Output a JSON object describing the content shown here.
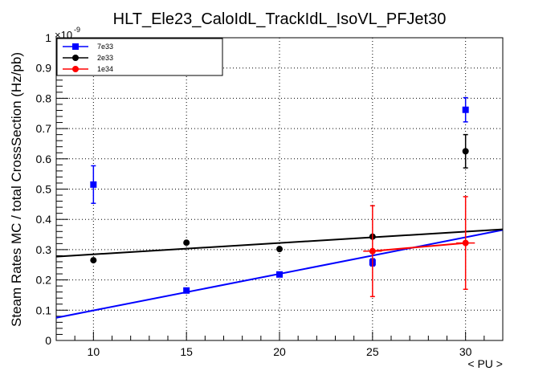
{
  "chart_data": {
    "type": "scatter",
    "title": "HLT_Ele23_CaloIdL_TrackIdL_IsoVL_PFJet30",
    "xlabel": "< PU >",
    "ylabel": "Steam Rates MC / total CrossSection (Hz/pb)",
    "xlim": [
      8,
      32
    ],
    "ylim": [
      0,
      1
    ],
    "y_exponent_label": "×10",
    "y_exponent": "-9",
    "x_ticks": [
      "10",
      "15",
      "20",
      "25",
      "30"
    ],
    "x_tick_values": [
      10,
      15,
      20,
      25,
      30
    ],
    "y_ticks": [
      "0",
      "0.1",
      "0.2",
      "0.3",
      "0.4",
      "0.5",
      "0.6",
      "0.7",
      "0.8",
      "0.9",
      "1"
    ],
    "y_tick_values": [
      0,
      0.1,
      0.2,
      0.3,
      0.4,
      0.5,
      0.6,
      0.7,
      0.8,
      0.9,
      1.0
    ],
    "grid": true,
    "legend_position": "top-left",
    "series": [
      {
        "name": "7e33",
        "color": "#0000ff",
        "marker": "square",
        "points": [
          {
            "x": 10,
            "y": 0.515,
            "yerr": 0.062
          },
          {
            "x": 15,
            "y": 0.165,
            "yerr": 0.004
          },
          {
            "x": 20,
            "y": 0.218,
            "yerr": 0.005
          },
          {
            "x": 25,
            "y": 0.258,
            "yerr": 0.012
          },
          {
            "x": 30,
            "y": 0.762,
            "yerr": 0.04
          }
        ],
        "fit": {
          "x0": 8,
          "y0": 0.075,
          "x1": 32,
          "y1": 0.365
        }
      },
      {
        "name": "2e33",
        "color": "#000000",
        "marker": "circle",
        "points": [
          {
            "x": 10,
            "y": 0.265,
            "yerr": 0.0
          },
          {
            "x": 15,
            "y": 0.323,
            "yerr": 0.0
          },
          {
            "x": 20,
            "y": 0.302,
            "yerr": 0.0
          },
          {
            "x": 25,
            "y": 0.343,
            "yerr": 0.0
          },
          {
            "x": 30,
            "y": 0.625,
            "yerr": 0.055
          }
        ],
        "fit": {
          "x0": 8,
          "y0": 0.277,
          "x1": 32,
          "y1": 0.367
        }
      },
      {
        "name": "1e34",
        "color": "#ff0000",
        "marker": "circle",
        "points": [
          {
            "x": 25,
            "y": 0.295,
            "yerr": 0.15,
            "xerr": 0.5
          },
          {
            "x": 30,
            "y": 0.322,
            "yerr": 0.153,
            "xerr": 0.5
          }
        ],
        "fit": {
          "x0": 25,
          "y0": 0.295,
          "x1": 30,
          "y1": 0.322
        }
      }
    ]
  }
}
